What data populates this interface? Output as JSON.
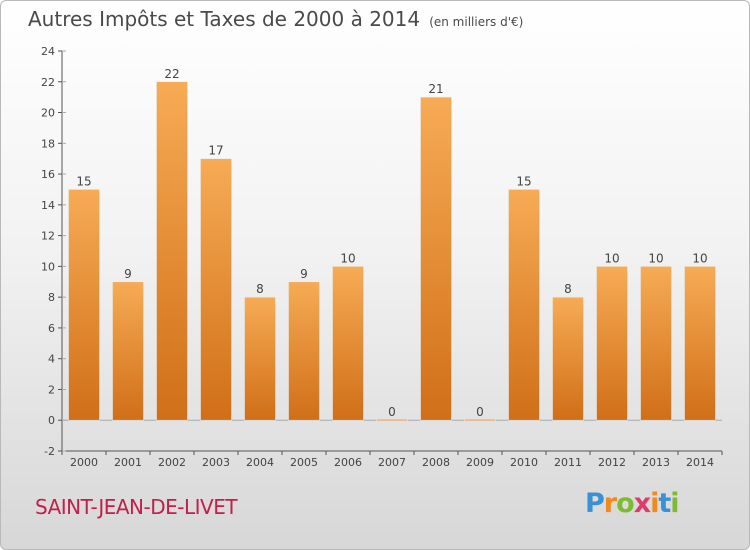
{
  "title": "Autres Impôts et Taxes de 2000 à 2014",
  "subtitle": "(en milliers d'€)",
  "commune": "SAINT-JEAN-DE-LIVET",
  "logo": {
    "letters": [
      "P",
      "r",
      "o",
      "x",
      "i",
      "t",
      "i"
    ],
    "colors": [
      "#3a8fd6",
      "#f08a1c",
      "#7dbb30",
      "#e03a6b",
      "#f08a1c",
      "#3a8fd6",
      "#7dbb30"
    ]
  },
  "colors": {
    "bar_top": "#f7ab55",
    "bar_bottom": "#d06f18",
    "axis": "#555555",
    "grid": "#aaaaaa"
  },
  "chart_data": {
    "type": "bar",
    "categories": [
      "2000",
      "2001",
      "2002",
      "2003",
      "2004",
      "2005",
      "2006",
      "2007",
      "2008",
      "2009",
      "2010",
      "2011",
      "2012",
      "2013",
      "2014"
    ],
    "values": [
      15,
      9,
      22,
      17,
      8,
      9,
      10,
      0,
      21,
      0,
      15,
      8,
      10,
      10,
      10
    ],
    "ylim": [
      -2,
      24
    ],
    "yticks": [
      -2,
      0,
      2,
      4,
      6,
      8,
      10,
      12,
      14,
      16,
      18,
      20,
      22,
      24
    ],
    "grid": false,
    "xlabel": "",
    "ylabel": ""
  }
}
